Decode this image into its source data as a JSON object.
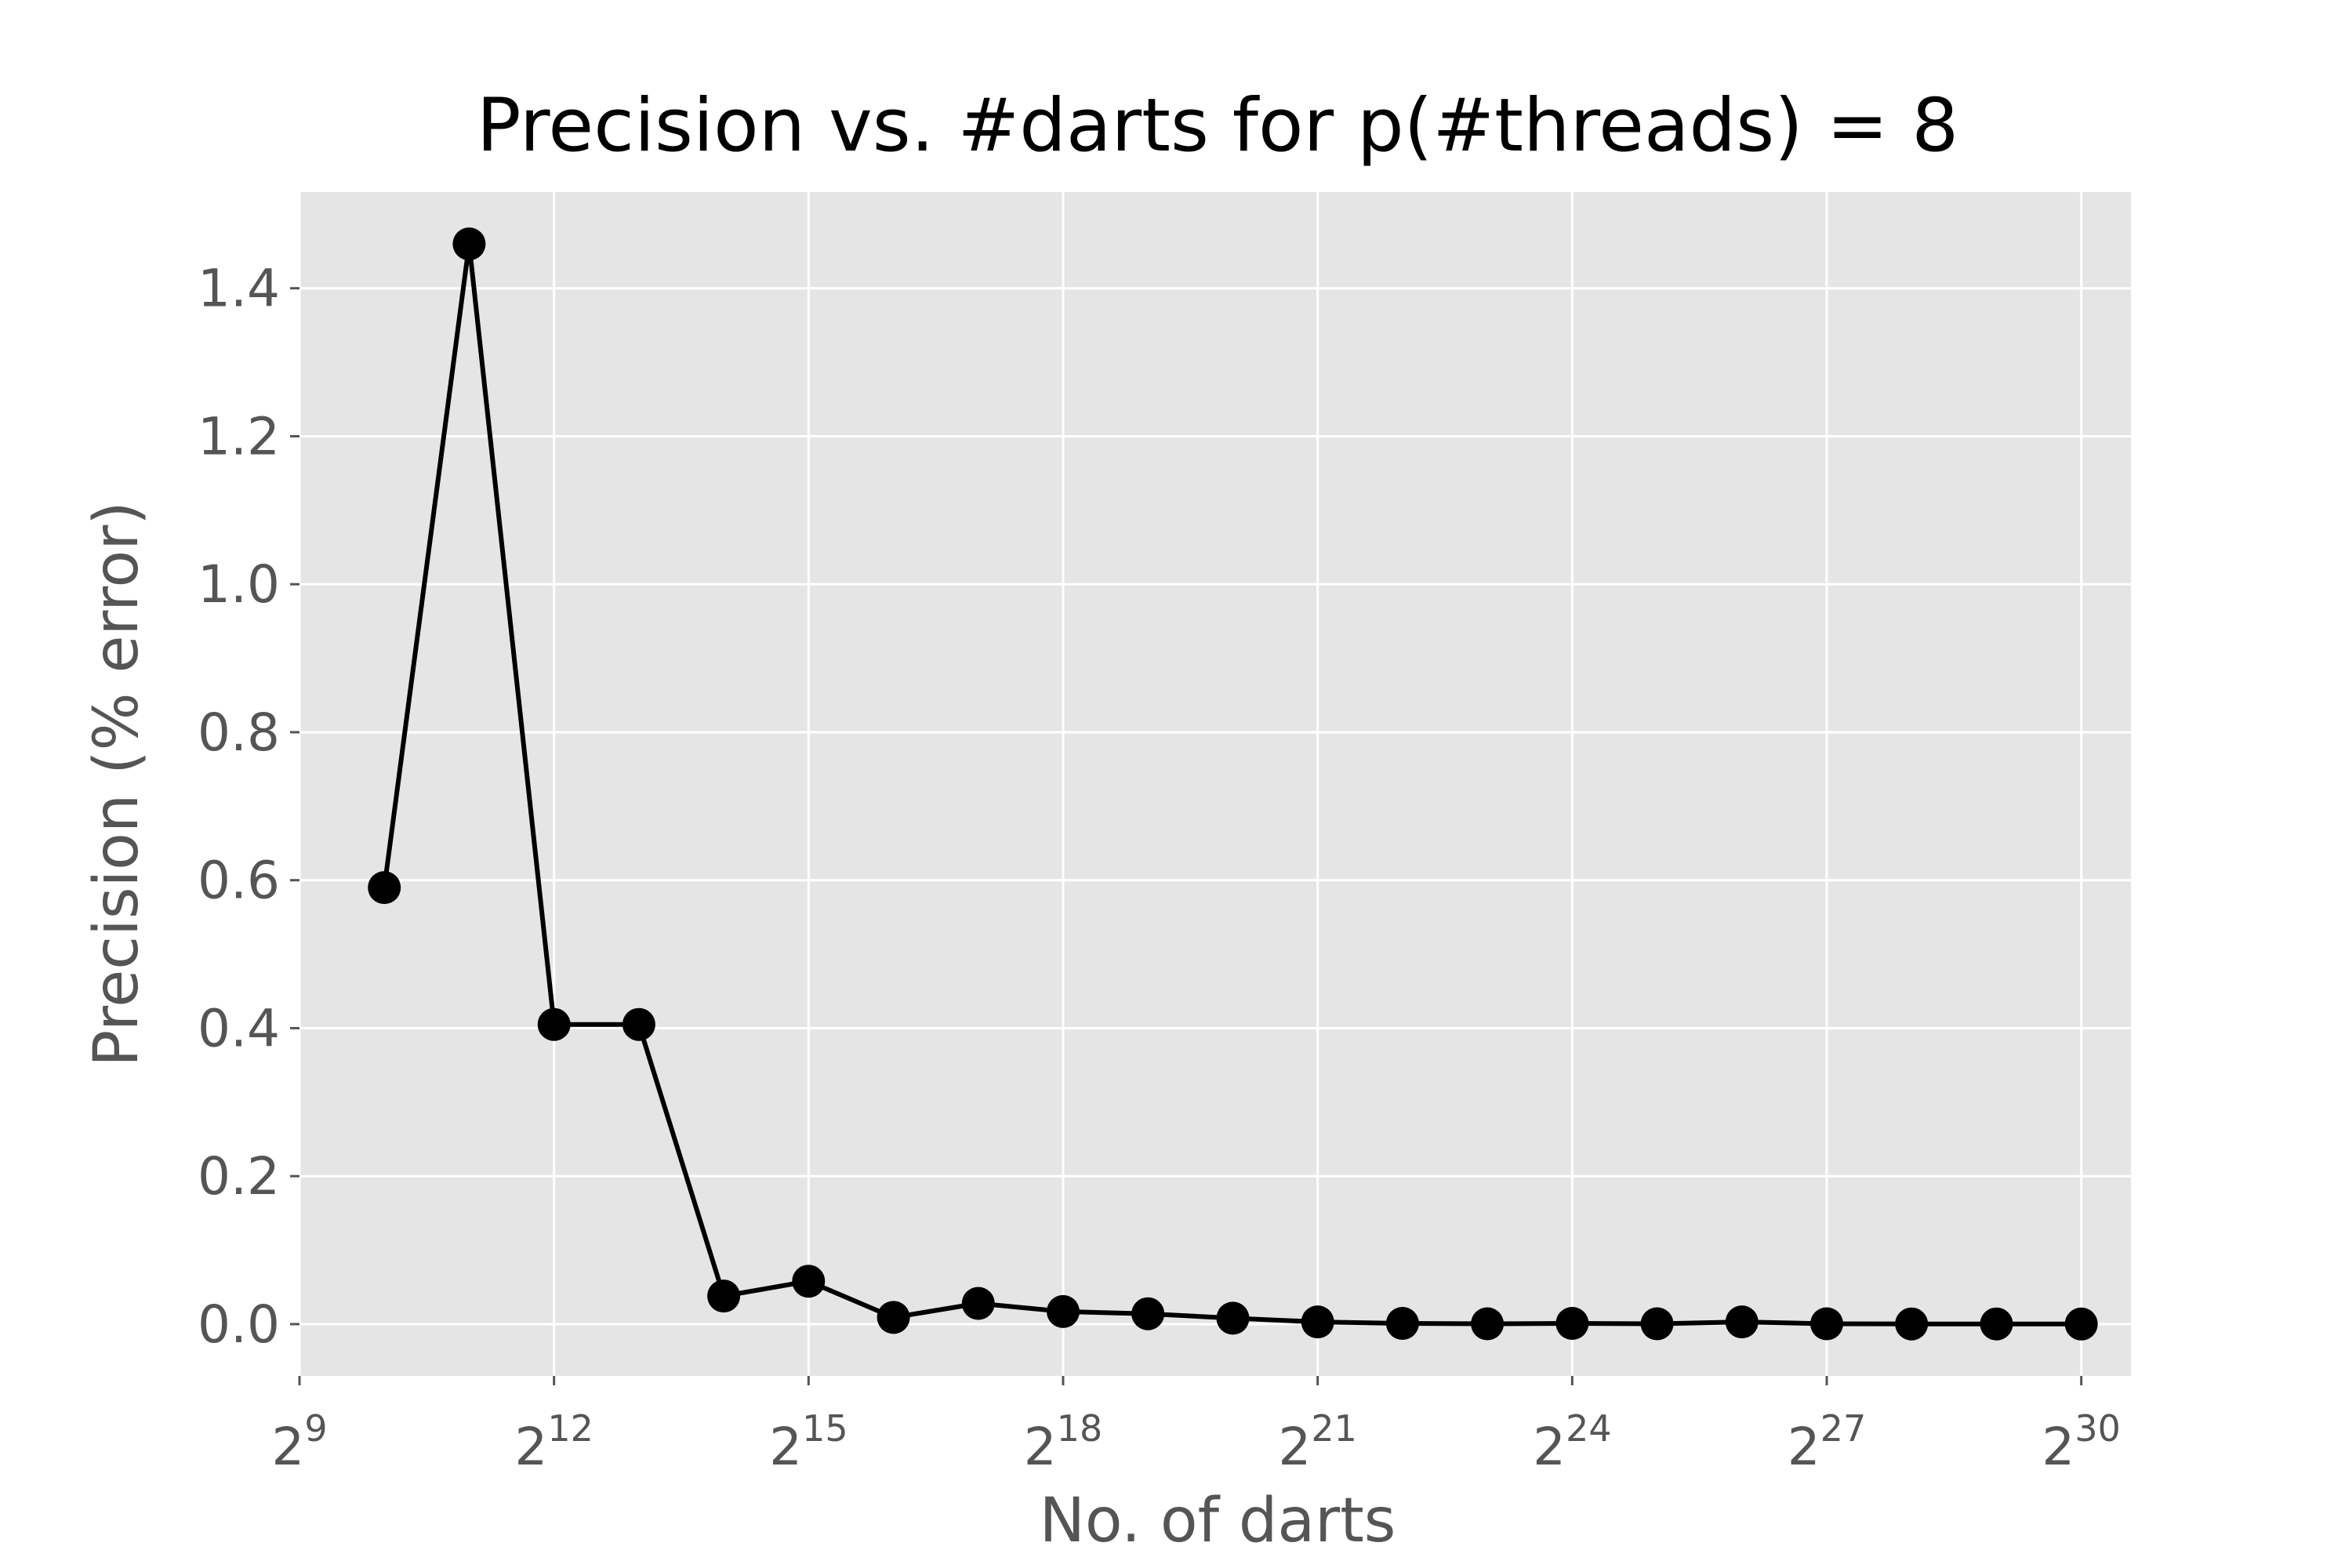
{
  "colors": {
    "plot_background": "#e5e5e5",
    "grid": "#ffffff",
    "line": "#000000",
    "text": "#555555",
    "title": "#000000"
  },
  "chart_data": {
    "type": "line",
    "title": "Precision vs. #darts for p(#threads) = 8",
    "xlabel": "No. of darts",
    "ylabel": "Precision (% error)",
    "x_scale": "log2",
    "xlim": [
      512,
      1610612736
    ],
    "ylim": [
      -0.07,
      1.53
    ],
    "x_ticks": [
      {
        "value": 512,
        "base": "2",
        "exp": "9"
      },
      {
        "value": 4096,
        "base": "2",
        "exp": "12"
      },
      {
        "value": 32768,
        "base": "2",
        "exp": "15"
      },
      {
        "value": 262144,
        "base": "2",
        "exp": "18"
      },
      {
        "value": 2097152,
        "base": "2",
        "exp": "21"
      },
      {
        "value": 16777216,
        "base": "2",
        "exp": "24"
      },
      {
        "value": 134217728,
        "base": "2",
        "exp": "27"
      },
      {
        "value": 1073741824,
        "base": "2",
        "exp": "30"
      }
    ],
    "y_ticks": [
      {
        "value": 0.0,
        "label": "0.0"
      },
      {
        "value": 0.2,
        "label": "0.2"
      },
      {
        "value": 0.4,
        "label": "0.4"
      },
      {
        "value": 0.6,
        "label": "0.6"
      },
      {
        "value": 0.8,
        "label": "0.8"
      },
      {
        "value": 1.0,
        "label": "1.0"
      },
      {
        "value": 1.2,
        "label": "1.2"
      },
      {
        "value": 1.4,
        "label": "1.4"
      }
    ],
    "grid": true,
    "marker": "circle",
    "series": [
      {
        "x": [
          1024,
          2048,
          4096,
          8192,
          16384,
          32768,
          65536,
          131072,
          262144,
          524288,
          1048576,
          2097152,
          4194304,
          8388608,
          16777216,
          33554432,
          67108864,
          134217728,
          268435456,
          536870912,
          1073741824
        ],
        "values": [
          0.59,
          1.46,
          0.405,
          0.405,
          0.038,
          0.058,
          0.009,
          0.028,
          0.017,
          0.014,
          0.008,
          0.003,
          0.001,
          0.0005,
          0.001,
          0.0005,
          0.003,
          0.0005,
          0.0003,
          0.0002,
          0.0001
        ]
      }
    ]
  }
}
